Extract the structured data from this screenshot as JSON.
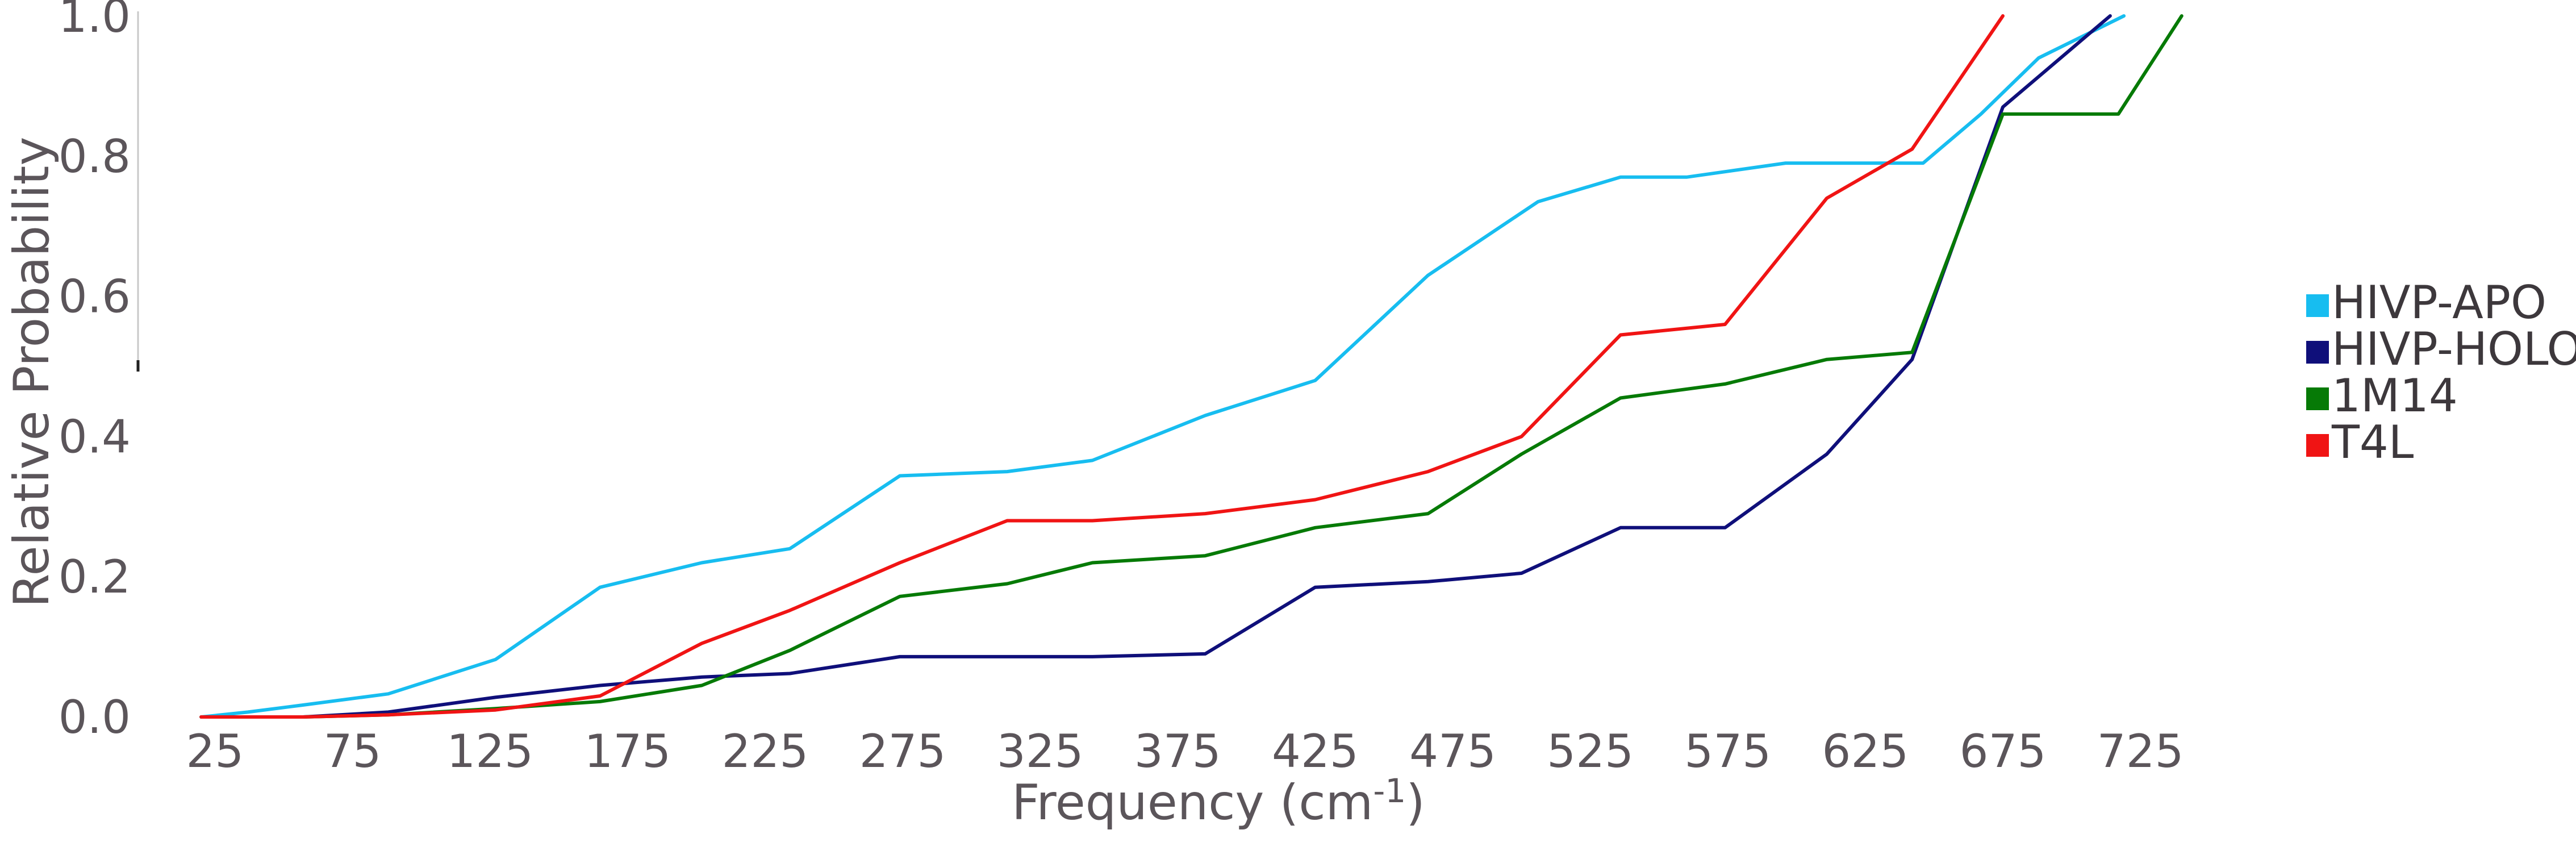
{
  "chart_data": {
    "type": "line",
    "title": "",
    "xlabel": "Frequency  (cm",
    "xlabel_superscript": "-1",
    "xlabel_close": ")",
    "ylabel": "Relative Probability",
    "xlim": [
      15,
      745
    ],
    "ylim": [
      0.0,
      1.0
    ],
    "x_ticks": [
      "25",
      "75",
      "125",
      "175",
      "225",
      "275",
      "325",
      "375",
      "425",
      "475",
      "525",
      "575",
      "625",
      "675",
      "725"
    ],
    "y_ticks": [
      "0.0",
      "0.2",
      "0.4",
      "0.6",
      "0.8",
      "1.0"
    ],
    "grid": false,
    "legend_position": "right",
    "series": [
      {
        "name": "HIVP-APO",
        "color": "#17bdf0",
        "x": [
          20,
          37,
          57,
          88,
          127,
          165,
          202,
          234,
          274,
          313,
          344,
          385,
          425,
          466,
          506,
          536,
          560,
          596,
          621,
          646,
          667,
          688,
          719
        ],
        "y": [
          0.0,
          0.007,
          0.017,
          0.033,
          0.082,
          0.185,
          0.22,
          0.24,
          0.344,
          0.35,
          0.366,
          0.43,
          0.48,
          0.63,
          0.735,
          0.77,
          0.77,
          0.79,
          0.79,
          0.79,
          0.86,
          0.94,
          1.0
        ]
      },
      {
        "name": "HIVP-HOLO",
        "color": "#0f0f7a",
        "x": [
          20,
          57,
          88,
          127,
          165,
          202,
          234,
          274,
          313,
          344,
          385,
          425,
          466,
          500,
          536,
          574,
          611,
          642,
          675,
          714
        ],
        "y": [
          0.0,
          0.0,
          0.007,
          0.028,
          0.045,
          0.057,
          0.062,
          0.086,
          0.086,
          0.086,
          0.09,
          0.185,
          0.193,
          0.205,
          0.27,
          0.27,
          0.375,
          0.51,
          0.87,
          1.0
        ]
      },
      {
        "name": "1M14",
        "color": "#067a06",
        "x": [
          20,
          57,
          88,
          127,
          165,
          202,
          234,
          274,
          313,
          344,
          385,
          425,
          466,
          500,
          536,
          574,
          611,
          642,
          675,
          717,
          740
        ],
        "y": [
          0.0,
          0.0,
          0.003,
          0.012,
          0.022,
          0.045,
          0.095,
          0.172,
          0.19,
          0.22,
          0.23,
          0.27,
          0.29,
          0.375,
          0.455,
          0.475,
          0.51,
          0.52,
          0.86,
          0.86,
          1.0
        ]
      },
      {
        "name": "T4L",
        "color": "#f01414",
        "x": [
          20,
          57,
          88,
          127,
          165,
          202,
          234,
          274,
          313,
          344,
          385,
          425,
          466,
          500,
          536,
          574,
          611,
          642,
          675
        ],
        "y": [
          0.0,
          0.0,
          0.003,
          0.01,
          0.03,
          0.105,
          0.152,
          0.22,
          0.28,
          0.28,
          0.29,
          0.31,
          0.35,
          0.4,
          0.545,
          0.56,
          0.74,
          0.81,
          1.0
        ]
      }
    ]
  }
}
